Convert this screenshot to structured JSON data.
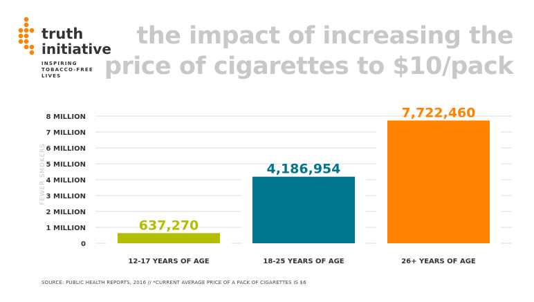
{
  "logo": {
    "name_line1": "truth",
    "name_line2": "initiative",
    "tagline": [
      "INSPIRING",
      "TOBACCO-FREE",
      "LIVES"
    ],
    "brand_color": "#ff8200"
  },
  "title": {
    "line1": "the impact of increasing the",
    "line2": "price of cigarettes to $10/pack"
  },
  "chart_data": {
    "type": "bar",
    "categories": [
      "12-17 YEARS OF AGE",
      "18-25 YEARS OF AGE",
      "26+ YEARS OF AGE"
    ],
    "values": [
      637270,
      4186954,
      7722460
    ],
    "data_labels": [
      "637,270",
      "4,186,954",
      "7,722,460"
    ],
    "colors": [
      "#b5bd00",
      "#00758d",
      "#ff8200"
    ],
    "ylabel": "FEWER SMOKERS",
    "xlabel": "",
    "ylim": [
      0,
      8000000
    ],
    "yticks": [
      0,
      1000000,
      2000000,
      3000000,
      4000000,
      5000000,
      6000000,
      7000000,
      8000000
    ],
    "ytick_labels": [
      "0",
      "1 MILLION",
      "2 MILLION",
      "3 MILLION",
      "4 MILLION",
      "5 MILLION",
      "6 MILLION",
      "7 MILLION",
      "8 MILLION"
    ],
    "grid": true
  },
  "footer": {
    "source": "SOURCE: PUBLIC HEALTH REPORTS, 2016 // *CURRENT AVERAGE PRICE OF A PACK OF CIGARETTES IS $6"
  }
}
